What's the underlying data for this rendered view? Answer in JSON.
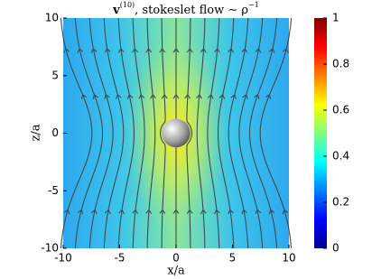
{
  "chart_data": {
    "type": "streamline",
    "title": [
      "v",
      "(10)",
      ", stokeslet flow ∼ ρ",
      "−1"
    ],
    "xlabel": "x/a",
    "ylabel": "z/a",
    "xlim": [
      -10,
      10
    ],
    "ylim": [
      -10,
      10
    ],
    "xticks": [
      -10,
      -5,
      0,
      5,
      10
    ],
    "yticks": [
      -10,
      -5,
      0,
      5,
      10
    ],
    "colorbar": {
      "lim": [
        0,
        1
      ],
      "ticks": [
        0,
        0.2,
        0.4,
        0.6,
        0.8,
        1
      ],
      "colormap": "jet"
    }
  }
}
